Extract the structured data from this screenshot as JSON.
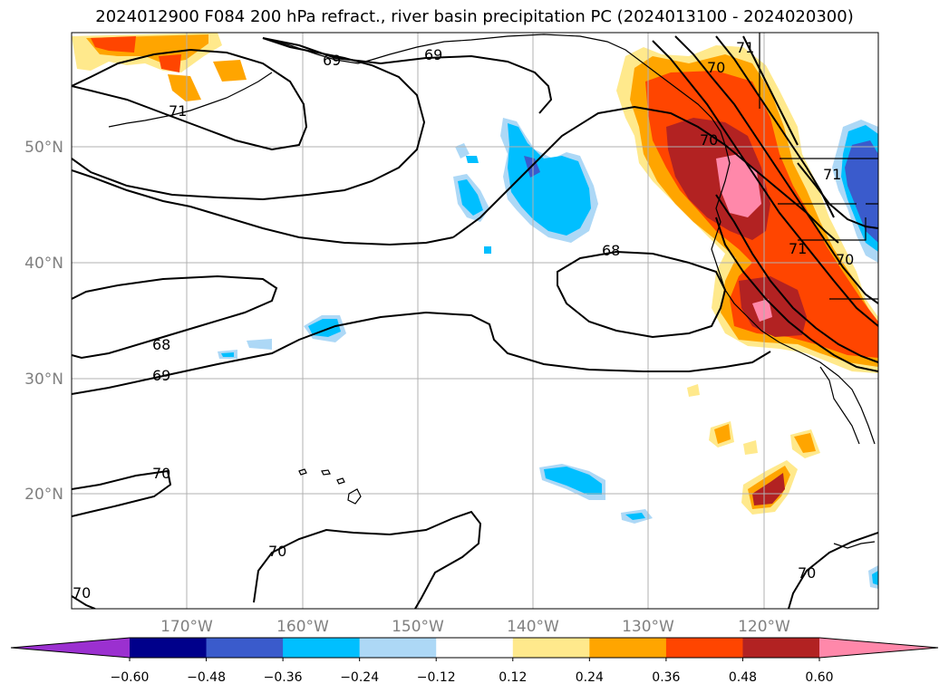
{
  "title": "2024012900 F084 200 hPa refract., river basin precipitation PC (2024013100 - 2024020300)",
  "latitude_labels": [
    "50°N",
    "40°N",
    "30°N",
    "20°N"
  ],
  "longitude_labels": [
    "170°W",
    "160°W",
    "150°W",
    "140°W",
    "130°W",
    "120°W"
  ],
  "contour_labels": [
    "69",
    "69",
    "68",
    "68",
    "69",
    "70",
    "70",
    "70",
    "70",
    "71",
    "71",
    "71",
    "70",
    "70",
    "71",
    "70"
  ],
  "colorbar": {
    "ticks": [
      "−0.60",
      "−0.48",
      "−0.36",
      "−0.24",
      "−0.12",
      "0.12",
      "0.24",
      "0.36",
      "0.48",
      "0.60"
    ],
    "colors": [
      "#9b30d0",
      "#00008b",
      "#3a5bcc",
      "#00bfff",
      "#add8f6",
      "#ffffff",
      "#ffe98c",
      "#ffa500",
      "#ff4500",
      "#b22222",
      "#ff88aa"
    ]
  },
  "colors": {
    "positive_low": "#ffe98c",
    "positive_mid": "#ffa500",
    "positive_high": "#ff4500",
    "positive_higher": "#b22222",
    "positive_max": "#ff88aa",
    "negative_low": "#add8f6",
    "negative_mid": "#00bfff",
    "negative_high": "#3a5bcc",
    "grid": "#b0b0b0"
  }
}
